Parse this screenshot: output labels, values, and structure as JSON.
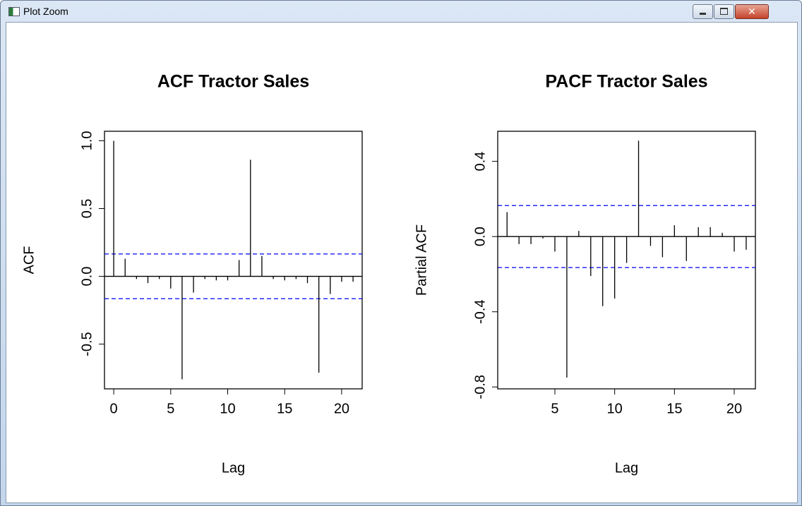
{
  "window": {
    "title": "Plot Zoom"
  },
  "chart_data": [
    {
      "type": "bar",
      "title": "ACF Tractor Sales",
      "x_label": "Lag",
      "y_label": "ACF",
      "x": [
        0,
        1,
        2,
        3,
        4,
        5,
        6,
        7,
        8,
        9,
        10,
        11,
        12,
        13,
        14,
        15,
        16,
        17,
        18,
        19,
        20,
        21
      ],
      "values": [
        1.0,
        0.13,
        -0.02,
        -0.05,
        -0.02,
        -0.09,
        -0.76,
        -0.12,
        -0.02,
        -0.03,
        -0.03,
        0.12,
        0.86,
        0.15,
        -0.02,
        -0.03,
        -0.02,
        -0.05,
        -0.71,
        -0.13,
        -0.04,
        -0.04
      ],
      "color": "#000000",
      "xlim": [
        -0.81,
        21.8
      ],
      "ylim": [
        -0.83,
        1.07
      ],
      "xticks": [
        0,
        5,
        10,
        15,
        20
      ],
      "yticks": [
        -0.5,
        {
          "value": 0,
          "label": "0.0"
        },
        0.5,
        {
          "value": 1,
          "label": "1.0"
        }
      ],
      "confidence": [
        0.165,
        -0.165
      ],
      "confidence_color": "#0000ff"
    },
    {
      "type": "bar",
      "title": "PACF Tractor Sales",
      "x_label": "Lag",
      "y_label": "Partial ACF",
      "x": [
        1,
        2,
        3,
        4,
        5,
        6,
        7,
        8,
        9,
        10,
        11,
        12,
        13,
        14,
        15,
        16,
        17,
        18,
        19,
        20,
        21
      ],
      "values": [
        0.13,
        -0.04,
        -0.04,
        -0.01,
        -0.08,
        -0.75,
        0.03,
        -0.21,
        -0.37,
        -0.33,
        -0.14,
        0.51,
        -0.05,
        -0.11,
        0.06,
        -0.13,
        0.05,
        0.05,
        0.02,
        -0.08,
        -0.07
      ],
      "color": "#000000",
      "xlim": [
        0.22,
        21.77
      ],
      "ylim": [
        -0.81,
        0.56
      ],
      "xticks": [
        5,
        10,
        15,
        20
      ],
      "yticks": [
        -0.8,
        -0.4,
        {
          "value": 0,
          "label": "0.0"
        },
        0.4
      ],
      "confidence": [
        0.165,
        -0.165
      ],
      "confidence_color": "#0000ff"
    }
  ]
}
